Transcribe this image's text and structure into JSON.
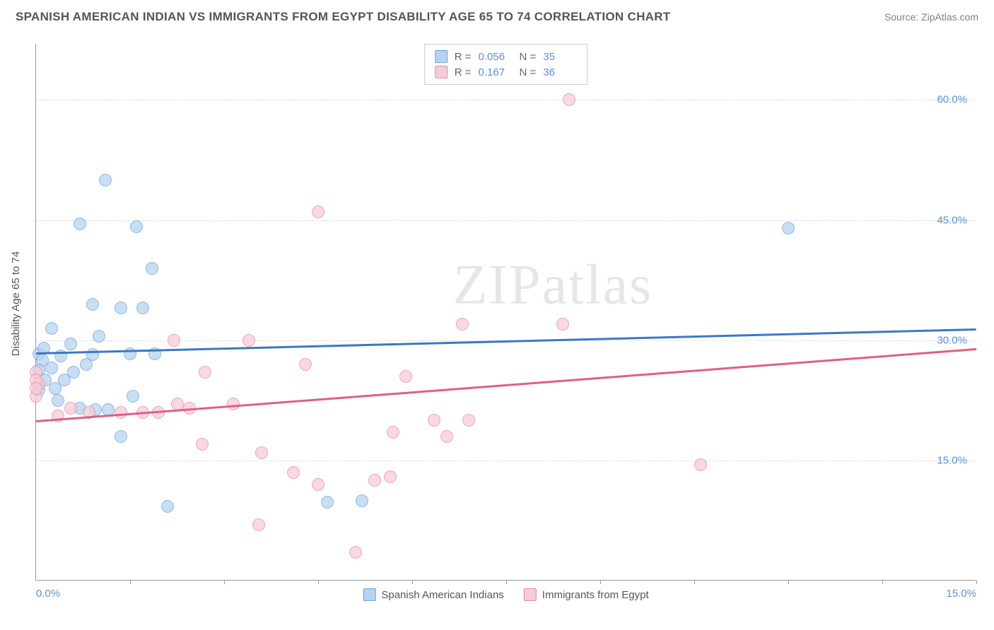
{
  "title": "SPANISH AMERICAN INDIAN VS IMMIGRANTS FROM EGYPT DISABILITY AGE 65 TO 74 CORRELATION CHART",
  "source": "Source: ZipAtlas.com",
  "watermark": "ZIPatlas",
  "yaxis_label": "Disability Age 65 to 74",
  "chart": {
    "type": "scatter",
    "background_color": "#ffffff",
    "grid_color": "#dddddd",
    "axis_color": "#999999",
    "tick_label_color": "#5b8fd6",
    "xlim": [
      0.0,
      15.0
    ],
    "ylim": [
      0.0,
      67.0
    ],
    "y_ticks": [
      15.0,
      30.0,
      45.0,
      60.0
    ],
    "y_tick_labels": [
      "15.0%",
      "30.0%",
      "45.0%",
      "60.0%"
    ],
    "x_ticks_minor": [
      1.5,
      3.0,
      4.5,
      6.0,
      7.5,
      9.0,
      10.5,
      12.0,
      13.5,
      15.0
    ],
    "x_tick_labels": [
      {
        "x": 0.0,
        "label": "0.0%"
      },
      {
        "x": 15.0,
        "label": "15.0%"
      }
    ],
    "point_radius": 9,
    "series": [
      {
        "key": "series_a",
        "name": "Spanish American Indians",
        "fill_color": "#b7d3ed",
        "stroke_color": "#6aa3de",
        "opacity": 0.75,
        "stats": {
          "R": "0.056",
          "N": "35"
        },
        "trend": {
          "x1": 0.0,
          "y1": 28.5,
          "x2": 15.0,
          "y2": 31.5,
          "color": "#3b78c4",
          "width": 2.5
        },
        "points_xy": [
          [
            1.1,
            50.0
          ],
          [
            0.7,
            44.5
          ],
          [
            1.6,
            44.2
          ],
          [
            1.85,
            39.0
          ],
          [
            0.9,
            34.5
          ],
          [
            1.35,
            34.0
          ],
          [
            1.7,
            34.0
          ],
          [
            0.25,
            31.5
          ],
          [
            0.05,
            28.3
          ],
          [
            0.4,
            28.0
          ],
          [
            0.9,
            28.2
          ],
          [
            1.5,
            28.3
          ],
          [
            1.9,
            28.3
          ],
          [
            0.1,
            27.5
          ],
          [
            0.05,
            26.3
          ],
          [
            0.25,
            26.5
          ],
          [
            0.6,
            26.0
          ],
          [
            0.15,
            25.0
          ],
          [
            0.45,
            25.0
          ],
          [
            0.05,
            23.8
          ],
          [
            0.35,
            22.5
          ],
          [
            1.55,
            23.0
          ],
          [
            0.7,
            21.5
          ],
          [
            0.95,
            21.3
          ],
          [
            1.15,
            21.3
          ],
          [
            1.35,
            18.0
          ],
          [
            2.1,
            9.3
          ],
          [
            4.65,
            9.8
          ],
          [
            5.2,
            10.0
          ],
          [
            12.0,
            44.0
          ],
          [
            0.55,
            29.5
          ],
          [
            0.12,
            29.0
          ],
          [
            0.8,
            27.0
          ],
          [
            0.3,
            24.0
          ],
          [
            1.0,
            30.5
          ]
        ]
      },
      {
        "key": "series_b",
        "name": "Immigrants from Egypt",
        "fill_color": "#f6cdd7",
        "stroke_color": "#e48aa3",
        "opacity": 0.75,
        "stats": {
          "R": "0.167",
          "N": "36"
        },
        "trend": {
          "x1": 0.0,
          "y1": 20.0,
          "x2": 15.0,
          "y2": 29.0,
          "color": "#df5f85",
          "width": 2.5
        },
        "points_xy": [
          [
            4.5,
            46.0
          ],
          [
            8.5,
            60.0
          ],
          [
            6.8,
            32.0
          ],
          [
            8.4,
            32.0
          ],
          [
            3.4,
            30.0
          ],
          [
            0.0,
            26.0
          ],
          [
            0.05,
            24.5
          ],
          [
            0.0,
            23.0
          ],
          [
            2.7,
            26.0
          ],
          [
            4.3,
            27.0
          ],
          [
            5.9,
            25.5
          ],
          [
            2.25,
            22.0
          ],
          [
            3.15,
            22.0
          ],
          [
            2.45,
            21.5
          ],
          [
            0.55,
            21.5
          ],
          [
            0.85,
            21.0
          ],
          [
            1.35,
            21.0
          ],
          [
            1.7,
            21.0
          ],
          [
            1.95,
            21.0
          ],
          [
            0.35,
            20.5
          ],
          [
            6.35,
            20.0
          ],
          [
            6.9,
            20.0
          ],
          [
            5.7,
            18.5
          ],
          [
            6.55,
            18.0
          ],
          [
            3.6,
            16.0
          ],
          [
            4.1,
            13.5
          ],
          [
            4.5,
            12.0
          ],
          [
            5.4,
            12.5
          ],
          [
            5.65,
            13.0
          ],
          [
            3.55,
            7.0
          ],
          [
            5.1,
            3.5
          ],
          [
            10.6,
            14.5
          ],
          [
            2.65,
            17.0
          ],
          [
            2.2,
            30.0
          ],
          [
            0.0,
            25.0
          ],
          [
            0.0,
            24.0
          ]
        ]
      }
    ]
  },
  "stats_labels": {
    "R": "R =",
    "N": "N ="
  },
  "bottom_legend": [
    {
      "swatch_fill": "#b7d3ed",
      "swatch_stroke": "#6aa3de",
      "label": "Spanish American Indians"
    },
    {
      "swatch_fill": "#f6cdd7",
      "swatch_stroke": "#e48aa3",
      "label": "Immigrants from Egypt"
    }
  ]
}
